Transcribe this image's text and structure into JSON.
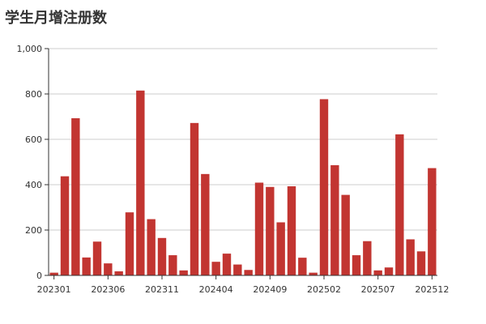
{
  "chart_data": {
    "type": "bar",
    "title": "学生月增注册数",
    "xlabel": "",
    "ylabel": "",
    "ylim": [
      0,
      1000
    ],
    "yticks": [
      "0",
      "200",
      "400",
      "600",
      "800",
      "1,000"
    ],
    "xtick_labels": [
      "202301",
      "202306",
      "202311",
      "202404",
      "202409",
      "202502",
      "202507",
      "202512"
    ],
    "grid": true,
    "bar_color": "#c23531",
    "categories": [
      "202301",
      "202302",
      "202303",
      "202304",
      "202305",
      "202306",
      "202307",
      "202308",
      "202309",
      "202310",
      "202311",
      "202312",
      "202401",
      "202402",
      "202403",
      "202404",
      "202405",
      "202406",
      "202407",
      "202408",
      "202409",
      "202410",
      "202411",
      "202412",
      "202501",
      "202502",
      "202503",
      "202504",
      "202505",
      "202506",
      "202507",
      "202508",
      "202509",
      "202510",
      "202511",
      "202512"
    ],
    "values": [
      12,
      437,
      693,
      79,
      149,
      53,
      18,
      278,
      815,
      248,
      165,
      89,
      22,
      672,
      447,
      60,
      96,
      48,
      24,
      409,
      390,
      234,
      393,
      78,
      12,
      777,
      486,
      355,
      89,
      151,
      22,
      35,
      622,
      159,
      106,
      473
    ]
  }
}
